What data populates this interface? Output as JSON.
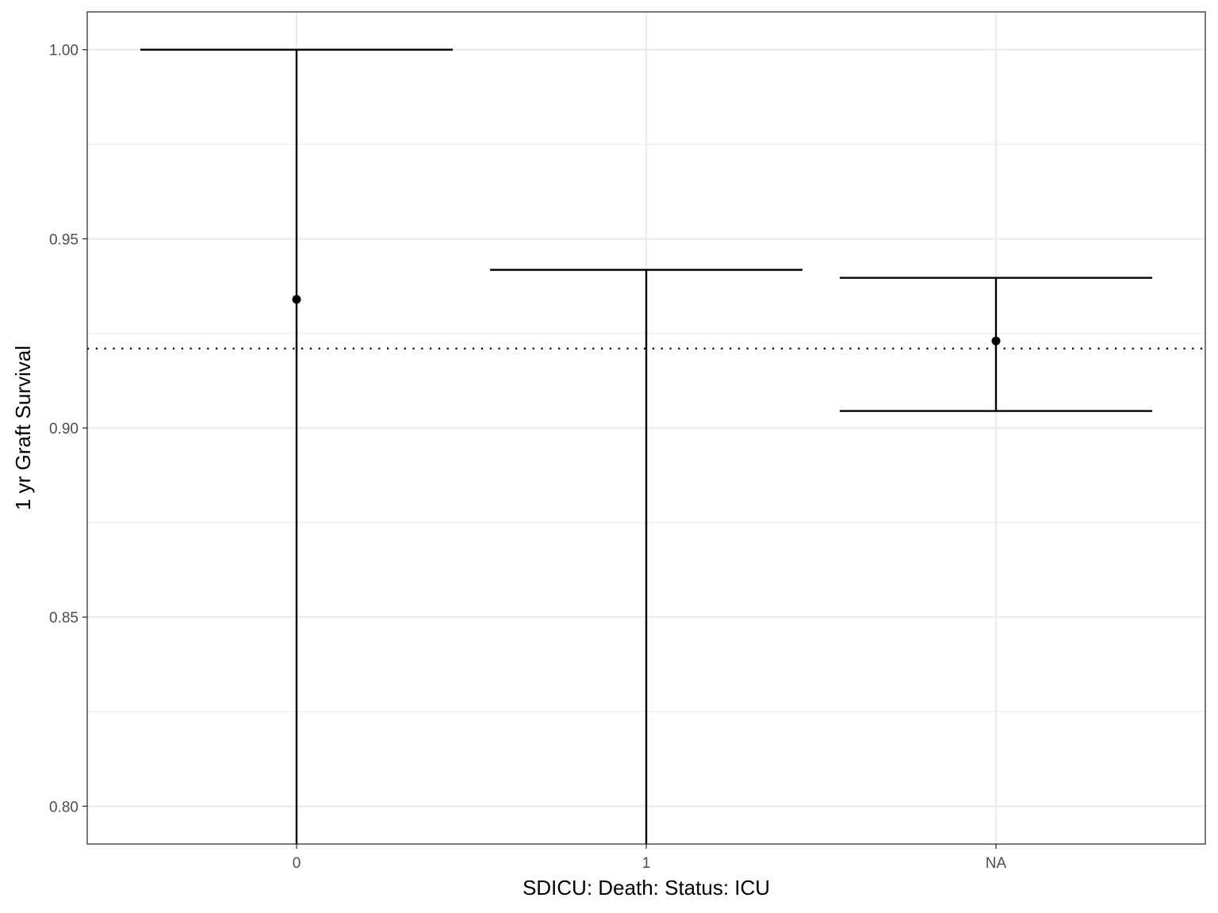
{
  "chart_data": {
    "type": "errorbar",
    "title": "",
    "xlabel": "SDICU: Death: Status: ICU",
    "ylabel": "1 yr Graft Survival",
    "categories": [
      "0",
      "1",
      "NA"
    ],
    "estimates": [
      0.934,
      null,
      0.923
    ],
    "lower": [
      0.79,
      0.79,
      0.9045
    ],
    "upper": [
      1.0,
      0.9418,
      0.9397
    ],
    "reference_line": 0.921,
    "reference_style": "dotted",
    "ylim": [
      0.79,
      1.01
    ],
    "yticks": [
      0.8,
      0.85,
      0.9,
      0.95,
      1.0
    ],
    "ytick_labels": [
      "0.80",
      "0.85",
      "0.90",
      "0.95",
      "1.00"
    ],
    "grid": true,
    "colors": {
      "marks": "#000000",
      "grid": "#ebebeb",
      "panel_border": "#333333",
      "tick_text": "#4d4d4d"
    }
  }
}
